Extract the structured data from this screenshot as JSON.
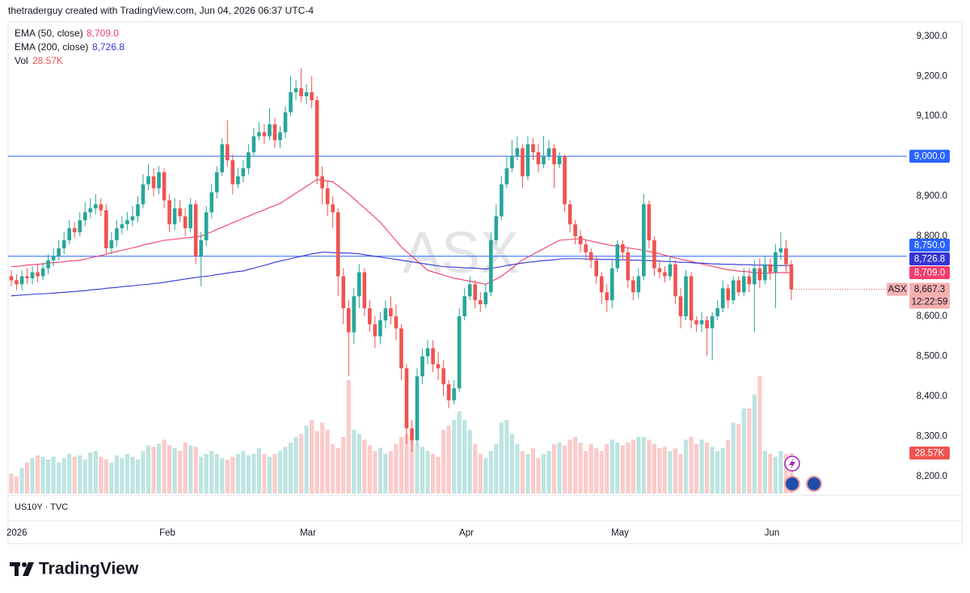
{
  "chart_data": {
    "type": "candlestick",
    "title": "thetraderguy created with TradingView.com, Jun 04, 2026 06:37 UTC-4",
    "symbol": "ASX",
    "pane_label": "US10Y · TVC",
    "brand": "TradingView",
    "xlabels": [
      "2026",
      "Feb",
      "Mar",
      "Apr",
      "May",
      "Jun"
    ],
    "ylim": [
      8157,
      9334
    ],
    "yticks": [
      {
        "value": 8200,
        "label": "8,200.0"
      },
      {
        "value": 8300,
        "label": "8,300.0"
      },
      {
        "value": 8400,
        "label": "8,400.0"
      },
      {
        "value": 8500,
        "label": "8,500.0"
      },
      {
        "value": 8600,
        "label": "8,600.0"
      },
      {
        "value": 8700,
        "label": "8,700.0"
      },
      {
        "value": 8800,
        "label": "8,800.0"
      },
      {
        "value": 8900,
        "label": "8,900.0"
      },
      {
        "value": 9000,
        "label": "9,000.0"
      },
      {
        "value": 9100,
        "label": "9,100.0"
      },
      {
        "value": 9200,
        "label": "9,200.0"
      },
      {
        "value": 9300,
        "label": "9,300.0"
      }
    ],
    "grid": false,
    "up_color": "#26a69a",
    "down_color": "#ef5350",
    "hlines": [
      {
        "value": 9000,
        "label": "9,000.0",
        "color": "#2962ff"
      },
      {
        "value": 8750,
        "label": "8,750.0",
        "color": "#2962ff"
      }
    ],
    "last_price": {
      "label": "8,667.3",
      "countdown": "12:22:59",
      "color": "#f7b0b0"
    },
    "candles": [
      [
        8700,
        8715,
        8675,
        8690
      ],
      [
        8690,
        8705,
        8665,
        8680
      ],
      [
        8680,
        8715,
        8665,
        8700
      ],
      [
        8700,
        8720,
        8680,
        8695
      ],
      [
        8695,
        8725,
        8680,
        8710
      ],
      [
        8710,
        8730,
        8685,
        8700
      ],
      [
        8700,
        8735,
        8690,
        8720
      ],
      [
        8720,
        8755,
        8705,
        8740
      ],
      [
        8740,
        8770,
        8725,
        8750
      ],
      [
        8750,
        8790,
        8740,
        8770
      ],
      [
        8770,
        8810,
        8755,
        8790
      ],
      [
        8790,
        8840,
        8780,
        8820
      ],
      [
        8820,
        8835,
        8795,
        8810
      ],
      [
        8810,
        8860,
        8800,
        8840
      ],
      [
        8840,
        8885,
        8825,
        8860
      ],
      [
        8860,
        8895,
        8845,
        8870
      ],
      [
        8870,
        8905,
        8855,
        8880
      ],
      [
        8880,
        8895,
        8850,
        8865
      ],
      [
        8865,
        8880,
        8755,
        8770
      ],
      [
        8770,
        8810,
        8755,
        8790
      ],
      [
        8790,
        8840,
        8775,
        8820
      ],
      [
        8820,
        8850,
        8805,
        8830
      ],
      [
        8830,
        8860,
        8815,
        8840
      ],
      [
        8840,
        8875,
        8825,
        8850
      ],
      [
        8850,
        8900,
        8835,
        8880
      ],
      [
        8880,
        8955,
        8870,
        8930
      ],
      [
        8930,
        8980,
        8915,
        8950
      ],
      [
        8950,
        8970,
        8900,
        8920
      ],
      [
        8920,
        8975,
        8905,
        8960
      ],
      [
        8960,
        8970,
        8870,
        8890
      ],
      [
        8890,
        8905,
        8810,
        8830
      ],
      [
        8830,
        8895,
        8815,
        8870
      ],
      [
        8870,
        8890,
        8835,
        8850
      ],
      [
        8850,
        8870,
        8800,
        8820
      ],
      [
        8820,
        8895,
        8810,
        8880
      ],
      [
        8880,
        8890,
        8730,
        8750
      ],
      [
        8750,
        8810,
        8675,
        8790
      ],
      [
        8790,
        8875,
        8775,
        8860
      ],
      [
        8860,
        8930,
        8845,
        8910
      ],
      [
        8910,
        8975,
        8895,
        8960
      ],
      [
        8960,
        9045,
        8950,
        9030
      ],
      [
        9030,
        9090,
        8975,
        8990
      ],
      [
        8990,
        9005,
        8905,
        8930
      ],
      [
        8930,
        8970,
        8920,
        8950
      ],
      [
        8950,
        8990,
        8935,
        8970
      ],
      [
        8970,
        9030,
        8955,
        9010
      ],
      [
        9010,
        9070,
        9000,
        9050
      ],
      [
        9050,
        9085,
        9040,
        9060
      ],
      [
        9060,
        9080,
        9030,
        9050
      ],
      [
        9050,
        9120,
        9040,
        9080
      ],
      [
        9080,
        9095,
        9020,
        9040
      ],
      [
        9040,
        9075,
        9020,
        9060
      ],
      [
        9060,
        9125,
        9045,
        9110
      ],
      [
        9110,
        9200,
        9100,
        9160
      ],
      [
        9160,
        9190,
        9140,
        9170
      ],
      [
        9170,
        9220,
        9135,
        9150
      ],
      [
        9150,
        9180,
        9130,
        9160
      ],
      [
        9160,
        9200,
        9120,
        9140
      ],
      [
        9140,
        9150,
        8930,
        8950
      ],
      [
        8950,
        8975,
        8880,
        8920
      ],
      [
        8920,
        8940,
        8850,
        8880
      ],
      [
        8880,
        8900,
        8820,
        8860
      ],
      [
        8860,
        8870,
        8650,
        8700
      ],
      [
        8700,
        8720,
        8580,
        8620
      ],
      [
        8620,
        8640,
        8450,
        8560
      ],
      [
        8560,
        8670,
        8530,
        8650
      ],
      [
        8650,
        8730,
        8620,
        8710
      ],
      [
        8710,
        8720,
        8600,
        8620
      ],
      [
        8620,
        8640,
        8560,
        8580
      ],
      [
        8580,
        8600,
        8520,
        8550
      ],
      [
        8550,
        8610,
        8530,
        8590
      ],
      [
        8590,
        8640,
        8570,
        8620
      ],
      [
        8620,
        8650,
        8580,
        8600
      ],
      [
        8600,
        8630,
        8540,
        8570
      ],
      [
        8570,
        8580,
        8440,
        8470
      ],
      [
        8470,
        8480,
        8280,
        8320
      ],
      [
        8320,
        8340,
        8260,
        8290
      ],
      [
        8290,
        8470,
        8280,
        8450
      ],
      [
        8450,
        8520,
        8430,
        8500
      ],
      [
        8500,
        8540,
        8480,
        8520
      ],
      [
        8520,
        8540,
        8460,
        8480
      ],
      [
        8480,
        8510,
        8440,
        8470
      ],
      [
        8470,
        8490,
        8400,
        8430
      ],
      [
        8430,
        8440,
        8370,
        8390
      ],
      [
        8390,
        8440,
        8380,
        8420
      ],
      [
        8420,
        8620,
        8410,
        8600
      ],
      [
        8600,
        8670,
        8590,
        8650
      ],
      [
        8650,
        8700,
        8640,
        8680
      ],
      [
        8680,
        8690,
        8620,
        8640
      ],
      [
        8640,
        8660,
        8610,
        8630
      ],
      [
        8630,
        8680,
        8620,
        8660
      ],
      [
        8660,
        8810,
        8650,
        8790
      ],
      [
        8790,
        8880,
        8780,
        8850
      ],
      [
        8850,
        8950,
        8840,
        8930
      ],
      [
        8930,
        9000,
        8920,
        8970
      ],
      [
        8970,
        9040,
        8960,
        9000
      ],
      [
        9000,
        9050,
        8990,
        9020
      ],
      [
        9020,
        9030,
        8920,
        8950
      ],
      [
        8950,
        9050,
        8940,
        9030
      ],
      [
        9030,
        9045,
        8990,
        9010
      ],
      [
        9010,
        9030,
        8960,
        8980
      ],
      [
        8980,
        9050,
        8970,
        9000
      ],
      [
        9000,
        9040,
        8990,
        9020
      ],
      [
        9020,
        9030,
        8920,
        8980
      ],
      [
        8980,
        9010,
        8970,
        9000
      ],
      [
        9000,
        9005,
        8860,
        8880
      ],
      [
        8880,
        8890,
        8810,
        8830
      ],
      [
        8830,
        8840,
        8780,
        8800
      ],
      [
        8800,
        8815,
        8760,
        8780
      ],
      [
        8780,
        8790,
        8740,
        8760
      ],
      [
        8760,
        8770,
        8720,
        8740
      ],
      [
        8740,
        8750,
        8680,
        8700
      ],
      [
        8700,
        8710,
        8630,
        8660
      ],
      [
        8660,
        8680,
        8610,
        8640
      ],
      [
        8640,
        8740,
        8620,
        8720
      ],
      [
        8720,
        8790,
        8710,
        8780
      ],
      [
        8780,
        8790,
        8740,
        8760
      ],
      [
        8760,
        8770,
        8670,
        8690
      ],
      [
        8690,
        8700,
        8640,
        8660
      ],
      [
        8660,
        8720,
        8645,
        8700
      ],
      [
        8700,
        8905,
        8690,
        8880
      ],
      [
        8880,
        8890,
        8770,
        8790
      ],
      [
        8790,
        8800,
        8700,
        8720
      ],
      [
        8720,
        8740,
        8695,
        8710
      ],
      [
        8710,
        8725,
        8685,
        8700
      ],
      [
        8700,
        8750,
        8690,
        8730
      ],
      [
        8730,
        8740,
        8630,
        8650
      ],
      [
        8650,
        8670,
        8570,
        8600
      ],
      [
        8600,
        8715,
        8590,
        8700
      ],
      [
        8700,
        8710,
        8570,
        8590
      ],
      [
        8590,
        8600,
        8560,
        8580
      ],
      [
        8580,
        8610,
        8560,
        8590
      ],
      [
        8590,
        8600,
        8500,
        8570
      ],
      [
        8570,
        8610,
        8490,
        8600
      ],
      [
        8600,
        8640,
        8590,
        8620
      ],
      [
        8620,
        8690,
        8610,
        8670
      ],
      [
        8670,
        8680,
        8620,
        8640
      ],
      [
        8640,
        8700,
        8630,
        8690
      ],
      [
        8690,
        8700,
        8650,
        8660
      ],
      [
        8660,
        8720,
        8650,
        8700
      ],
      [
        8700,
        8720,
        8660,
        8680
      ],
      [
        8680,
        8740,
        8560,
        8720
      ],
      [
        8720,
        8745,
        8670,
        8690
      ],
      [
        8690,
        8750,
        8680,
        8730
      ],
      [
        8730,
        8745,
        8690,
        8710
      ],
      [
        8710,
        8780,
        8620,
        8760
      ],
      [
        8760,
        8810,
        8740,
        8770
      ],
      [
        8770,
        8790,
        8710,
        8730
      ],
      [
        8730,
        8740,
        8640,
        8667.3
      ]
    ],
    "series": [
      {
        "name": "EMA (50, close)",
        "color": "#f23d6d",
        "value_label": "8,709.0",
        "values": [
          8724,
          8725,
          8726,
          8728,
          8729,
          8730,
          8731,
          8733,
          8734,
          8735,
          8736,
          8738,
          8739,
          8740,
          8743,
          8746,
          8749,
          8752,
          8755,
          8759,
          8762,
          8765,
          8768,
          8771,
          8774,
          8778,
          8781,
          8784,
          8787,
          8790,
          8791,
          8793,
          8794,
          8796,
          8797,
          8799,
          8800,
          8806,
          8811,
          8817,
          8822,
          8828,
          8834,
          8839,
          8845,
          8850,
          8856,
          8861,
          8866,
          8872,
          8877,
          8882,
          8891,
          8899,
          8908,
          8916,
          8925,
          8933,
          8942,
          8940,
          8938,
          8936,
          8926,
          8916,
          8906,
          8894,
          8882,
          8871,
          8859,
          8847,
          8835,
          8820,
          8804,
          8789,
          8773,
          8761,
          8750,
          8738,
          8727,
          8715,
          8711,
          8707,
          8703,
          8699,
          8695,
          8693,
          8690,
          8688,
          8685,
          8683,
          8680,
          8687,
          8693,
          8700,
          8710,
          8720,
          8731,
          8741,
          8748,
          8755,
          8762,
          8769,
          8776,
          8783,
          8790,
          8791,
          8792,
          8793,
          8794,
          8791,
          8788,
          8785,
          8782,
          8779,
          8777,
          8775,
          8773,
          8771,
          8769,
          8767,
          8765,
          8762,
          8759,
          8756,
          8753,
          8749,
          8746,
          8743,
          8740,
          8737,
          8734,
          8731,
          8728,
          8725,
          8722,
          8719,
          8716,
          8715,
          8713,
          8712,
          8711,
          8709,
          8708,
          8708,
          8708,
          8709,
          8709,
          8709,
          8709
        ]
      },
      {
        "name": "EMA (200, close)",
        "color": "#3535d6",
        "value_label": "8,726.8",
        "values": [
          8651,
          8652,
          8653,
          8654,
          8655,
          8656,
          8656,
          8657,
          8658,
          8659,
          8660,
          8661,
          8662,
          8663,
          8664,
          8666,
          8667,
          8668,
          8670,
          8671,
          8672,
          8674,
          8675,
          8676,
          8678,
          8679,
          8680,
          8682,
          8683,
          8685,
          8687,
          8689,
          8691,
          8693,
          8695,
          8697,
          8699,
          8700,
          8702,
          8704,
          8706,
          8708,
          8710,
          8712,
          8713,
          8717,
          8720,
          8724,
          8727,
          8731,
          8735,
          8738,
          8741,
          8744,
          8747,
          8750,
          8753,
          8756,
          8758,
          8760,
          8760,
          8759,
          8759,
          8758,
          8758,
          8757,
          8756,
          8754,
          8752,
          8750,
          8748,
          8746,
          8744,
          8742,
          8740,
          8738,
          8736,
          8734,
          8732,
          8730,
          8728,
          8726,
          8724,
          8723,
          8723,
          8722,
          8721,
          8721,
          8720,
          8719,
          8718,
          8720,
          8722,
          8724,
          8727,
          8729,
          8731,
          8733,
          8735,
          8736,
          8738,
          8739,
          8740,
          8741,
          8743,
          8744,
          8744,
          8744,
          8744,
          8743,
          8743,
          8743,
          8742,
          8742,
          8742,
          8741,
          8741,
          8741,
          8740,
          8740,
          8740,
          8739,
          8739,
          8738,
          8737,
          8737,
          8736,
          8735,
          8735,
          8734,
          8733,
          8733,
          8732,
          8731,
          8731,
          8730,
          8730,
          8730,
          8729,
          8729,
          8729,
          8728,
          8728,
          8728,
          8727,
          8727,
          8727,
          8727,
          8726.8
        ]
      }
    ],
    "volume": {
      "name": "Vol",
      "value_label": "28.57K",
      "values": [
        14,
        12,
        18,
        22,
        25,
        27,
        26,
        24,
        26,
        22,
        25,
        28,
        26,
        27,
        24,
        29,
        30,
        26,
        24,
        22,
        27,
        25,
        28,
        26,
        24,
        30,
        34,
        33,
        35,
        38,
        34,
        32,
        30,
        36,
        34,
        33,
        26,
        28,
        30,
        28,
        25,
        24,
        26,
        28,
        30,
        27,
        28,
        32,
        28,
        26,
        28,
        30,
        33,
        36,
        40,
        42,
        48,
        52,
        44,
        50,
        45,
        35,
        32,
        40,
        80,
        45,
        42,
        38,
        34,
        30,
        32,
        28,
        30,
        35,
        40,
        42,
        38,
        35,
        33,
        30,
        28,
        26,
        45,
        48,
        52,
        58,
        52,
        45,
        35,
        28,
        25,
        30,
        35,
        50,
        52,
        42,
        35,
        30,
        28,
        32,
        25,
        28,
        30,
        35,
        36,
        34,
        38,
        40,
        36,
        30,
        35,
        32,
        30,
        35,
        38,
        36,
        34,
        36,
        38,
        40,
        40,
        38,
        35,
        32,
        33,
        30,
        32,
        28,
        38,
        40,
        35,
        38,
        36,
        33,
        30,
        32,
        38,
        50,
        49,
        60,
        60,
        70,
        83,
        30,
        28,
        26,
        30,
        28,
        28.57
      ]
    }
  }
}
